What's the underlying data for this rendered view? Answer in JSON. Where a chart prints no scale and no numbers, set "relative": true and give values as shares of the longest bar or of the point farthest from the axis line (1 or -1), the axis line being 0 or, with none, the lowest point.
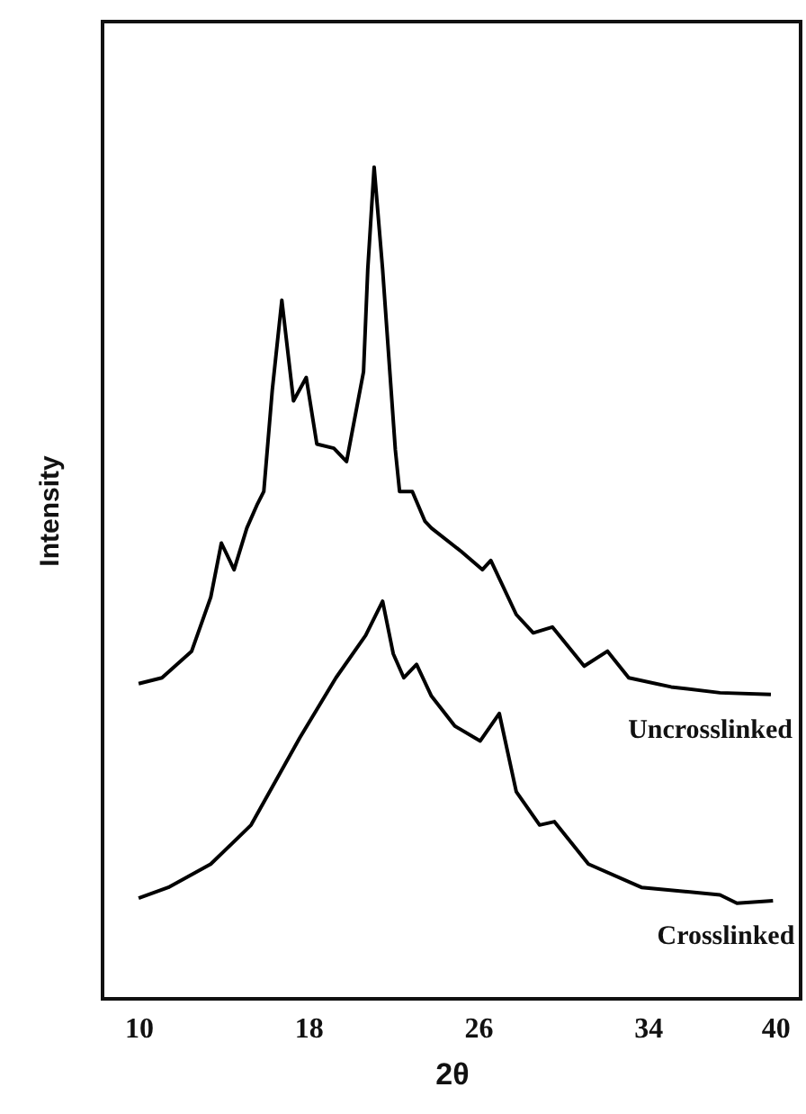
{
  "chart_data": {
    "type": "line",
    "xlabel": "2θ",
    "ylabel": "Intensity",
    "relative": true,
    "xlim": [
      8.3,
      41.2
    ],
    "xticks": [
      10,
      18,
      26,
      34,
      40
    ],
    "grid": false,
    "legend": false,
    "marker": "none",
    "line_style": "solid",
    "series": [
      {
        "name": "Uncrosslinked",
        "color": "#000000",
        "x": [
          10,
          11.1,
          12.5,
          13.4,
          13.9,
          14.5,
          15.1,
          15.6,
          15.9,
          16.3,
          16.75,
          17.3,
          17.9,
          18.4,
          19.2,
          19.8,
          20.6,
          20.8,
          21.1,
          21.5,
          22.1,
          22.3,
          22.9,
          23.5,
          23.8,
          25.2,
          26.2,
          26.6,
          27.8,
          28.6,
          29.5,
          31.0,
          32.1,
          33.1,
          35.1,
          37.4,
          39.8
        ],
        "values": [
          0.379,
          0.386,
          0.418,
          0.483,
          0.548,
          0.516,
          0.566,
          0.595,
          0.61,
          0.732,
          0.84,
          0.719,
          0.747,
          0.667,
          0.662,
          0.646,
          0.754,
          0.877,
          1.0,
          0.877,
          0.66,
          0.61,
          0.61,
          0.574,
          0.566,
          0.538,
          0.516,
          0.527,
          0.462,
          0.44,
          0.447,
          0.4,
          0.418,
          0.386,
          0.375,
          0.368,
          0.366
        ]
      },
      {
        "name": "Crosslinked",
        "color": "#000000",
        "x": [
          10,
          11.4,
          13.4,
          15.3,
          17.6,
          19.3,
          20.7,
          21.5,
          22.0,
          22.5,
          23.1,
          23.8,
          24.9,
          26.1,
          27.0,
          27.8,
          28.9,
          29.6,
          31.2,
          33.7,
          37.4,
          38.2,
          39.9
        ],
        "values": [
          0.121,
          0.134,
          0.162,
          0.209,
          0.314,
          0.386,
          0.437,
          0.478,
          0.415,
          0.386,
          0.402,
          0.364,
          0.328,
          0.31,
          0.343,
          0.249,
          0.209,
          0.213,
          0.162,
          0.134,
          0.125,
          0.115,
          0.118
        ]
      }
    ]
  }
}
